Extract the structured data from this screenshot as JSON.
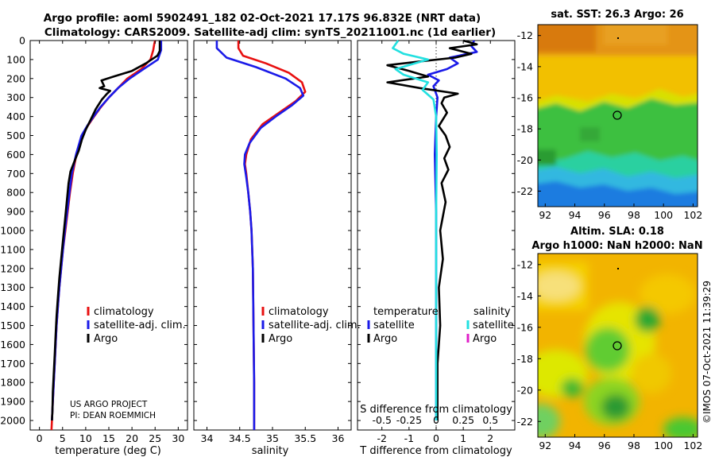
{
  "header": {
    "title_line1": "Argo profile: aoml 5902491_182 02-Oct-2021 17.17S 96.832E (NRT data)",
    "title_line2": "Climatology: CARS2009. Satellite-adj clim: synTS_20211001.nc (1d earlier)"
  },
  "credit": {
    "line1": "US ARGO PROJECT",
    "line2": "PI: DEAN ROEMMICH"
  },
  "timestamp": "©IMOS 07-Oct-2021 11:39:29",
  "colors": {
    "climatology": "#e81010",
    "satellite": "#1a1ae8",
    "argo": "#000000",
    "sat_salinity": "#22e0e0",
    "argo_salinity": "#e020c8"
  },
  "depth_axis": {
    "min": 0,
    "max": 2050,
    "ticks": [
      0,
      100,
      200,
      300,
      400,
      500,
      600,
      700,
      800,
      900,
      1000,
      1100,
      1200,
      1300,
      1400,
      1500,
      1600,
      1700,
      1800,
      1900,
      2000
    ]
  },
  "chart_data": [
    {
      "type": "line",
      "panel": "temperature",
      "xlabel": "temperature (deg C)",
      "xlim": [
        -2,
        32
      ],
      "xticks": [
        0,
        5,
        10,
        15,
        20,
        25,
        30
      ],
      "legend": [
        "climatology",
        "satellite-adj. clim.",
        "Argo"
      ],
      "series": [
        {
          "name": "climatology",
          "color": "#e81010",
          "points": [
            [
              25,
              0
            ],
            [
              24.8,
              20
            ],
            [
              24.6,
              50
            ],
            [
              24,
              100
            ],
            [
              22,
              150
            ],
            [
              19,
              200
            ],
            [
              17,
              250
            ],
            [
              15,
              300
            ],
            [
              13.3,
              350
            ],
            [
              11.8,
              400
            ],
            [
              10.4,
              450
            ],
            [
              9.2,
              500
            ],
            [
              8,
              600
            ],
            [
              7.2,
              700
            ],
            [
              6.6,
              800
            ],
            [
              6.1,
              900
            ],
            [
              5.6,
              1000
            ],
            [
              5.1,
              1100
            ],
            [
              4.7,
              1200
            ],
            [
              4.3,
              1300
            ],
            [
              4,
              1400
            ],
            [
              3.7,
              1500
            ],
            [
              3.5,
              1600
            ],
            [
              3.3,
              1700
            ],
            [
              3.1,
              1800
            ],
            [
              2.9,
              1900
            ],
            [
              2.7,
              2000
            ],
            [
              2.6,
              2050
            ]
          ]
        },
        {
          "name": "satellite-adj. clim.",
          "color": "#1a1ae8",
          "points": [
            [
              26.3,
              0
            ],
            [
              26.3,
              50
            ],
            [
              25.6,
              100
            ],
            [
              22.5,
              150
            ],
            [
              19.5,
              200
            ],
            [
              17,
              250
            ],
            [
              15,
              300
            ],
            [
              13.2,
              350
            ],
            [
              11.7,
              400
            ],
            [
              10.3,
              450
            ],
            [
              9.1,
              500
            ],
            [
              7.9,
              600
            ],
            [
              7,
              700
            ],
            [
              6.5,
              800
            ],
            [
              6,
              900
            ],
            [
              5.5,
              1000
            ],
            [
              5.1,
              1100
            ],
            [
              4.7,
              1200
            ],
            [
              4.3,
              1300
            ],
            [
              4,
              1400
            ],
            [
              3.7,
              1500
            ],
            [
              3.5,
              1600
            ],
            [
              3.3,
              1700
            ],
            [
              3.1,
              1800
            ],
            [
              2.9,
              1900
            ],
            [
              2.7,
              2000
            ]
          ]
        },
        {
          "name": "Argo",
          "color": "#000000",
          "points": [
            [
              26,
              0
            ],
            [
              26,
              55
            ],
            [
              25.5,
              80
            ],
            [
              23,
              120
            ],
            [
              20,
              160
            ],
            [
              16,
              190
            ],
            [
              13.4,
              210
            ],
            [
              14,
              240
            ],
            [
              13,
              250
            ],
            [
              15.3,
              265
            ],
            [
              14.6,
              280
            ],
            [
              13.5,
              310
            ],
            [
              12.2,
              360
            ],
            [
              11,
              420
            ],
            [
              10,
              470
            ],
            [
              9.2,
              520
            ],
            [
              8.5,
              580
            ],
            [
              7.5,
              640
            ],
            [
              6.7,
              690
            ],
            [
              6.3,
              750
            ],
            [
              5.9,
              850
            ],
            [
              5.5,
              950
            ],
            [
              5.1,
              1050
            ],
            [
              4.7,
              1150
            ],
            [
              4.3,
              1250
            ],
            [
              4,
              1350
            ],
            [
              3.7,
              1450
            ],
            [
              3.5,
              1550
            ],
            [
              3.3,
              1650
            ],
            [
              3.1,
              1750
            ],
            [
              2.9,
              1850
            ],
            [
              2.8,
              1950
            ],
            [
              2.7,
              2000
            ]
          ]
        }
      ]
    },
    {
      "type": "line",
      "panel": "salinity",
      "xlabel": "salinity",
      "xlim": [
        33.8,
        36.2
      ],
      "xticks": [
        34,
        34.5,
        35,
        35.5,
        36
      ],
      "legend": [
        "climatology",
        "satellite-adj. clim.",
        "Argo"
      ],
      "series": [
        {
          "name": "climatology",
          "color": "#e81010",
          "points": [
            [
              34.48,
              0
            ],
            [
              34.48,
              40
            ],
            [
              34.55,
              80
            ],
            [
              34.9,
              120
            ],
            [
              35.25,
              170
            ],
            [
              35.45,
              220
            ],
            [
              35.5,
              270
            ],
            [
              35.35,
              320
            ],
            [
              35.1,
              380
            ],
            [
              34.85,
              440
            ],
            [
              34.67,
              520
            ],
            [
              34.6,
              600
            ],
            [
              34.58,
              650
            ],
            [
              34.6,
              700
            ],
            [
              34.63,
              800
            ],
            [
              34.66,
              900
            ],
            [
              34.68,
              1000
            ],
            [
              34.7,
              1200
            ],
            [
              34.71,
              1500
            ],
            [
              34.72,
              1800
            ],
            [
              34.72,
              2050
            ]
          ]
        },
        {
          "name": "satellite-adj. clim.",
          "color": "#1a1ae8",
          "points": [
            [
              34.15,
              0
            ],
            [
              34.15,
              40
            ],
            [
              34.3,
              90
            ],
            [
              34.75,
              140
            ],
            [
              35.2,
              200
            ],
            [
              35.42,
              250
            ],
            [
              35.47,
              290
            ],
            [
              35.3,
              340
            ],
            [
              35.05,
              400
            ],
            [
              34.82,
              460
            ],
            [
              34.65,
              540
            ],
            [
              34.58,
              600
            ],
            [
              34.57,
              650
            ],
            [
              34.6,
              720
            ],
            [
              34.63,
              800
            ],
            [
              34.66,
              900
            ],
            [
              34.68,
              1000
            ],
            [
              34.7,
              1200
            ],
            [
              34.71,
              1500
            ],
            [
              34.72,
              1800
            ],
            [
              34.72,
              2050
            ]
          ]
        }
      ]
    },
    {
      "type": "line",
      "panel": "difference",
      "xlabel": "T difference from climatology",
      "xlabel_top": "S difference from climatology",
      "xlim": [
        -2.9,
        2.9
      ],
      "xticks": [
        -2,
        -1,
        0,
        1,
        2
      ],
      "s_ticks": [
        "-0.5",
        "-0.25",
        "0",
        "0.25",
        "0.5"
      ],
      "legend_temperature_title": "temperature",
      "legend_salinity_title": "salinity",
      "legend": {
        "temperature": [
          "satellite",
          "Argo"
        ],
        "salinity": [
          "satellite",
          "Argo"
        ]
      },
      "series": [
        {
          "name": "T satellite",
          "color": "#1a1ae8",
          "points": [
            [
              1.4,
              0
            ],
            [
              1.3,
              30
            ],
            [
              1.5,
              60
            ],
            [
              0.5,
              90
            ],
            [
              0.8,
              120
            ],
            [
              0.4,
              150
            ],
            [
              -0.3,
              180
            ],
            [
              0.1,
              210
            ],
            [
              -0.1,
              240
            ],
            [
              0.05,
              300
            ],
            [
              0,
              400
            ],
            [
              -0.05,
              600
            ],
            [
              0,
              900
            ],
            [
              0,
              1300
            ],
            [
              0,
              1700
            ],
            [
              0,
              2000
            ]
          ]
        },
        {
          "name": "T Argo",
          "color": "#000000",
          "points": [
            [
              1,
              0
            ],
            [
              1.5,
              20
            ],
            [
              0.5,
              40
            ],
            [
              1.3,
              70
            ],
            [
              0.7,
              90
            ],
            [
              -0.6,
              110
            ],
            [
              -1.8,
              130
            ],
            [
              -1,
              160
            ],
            [
              -0.3,
              190
            ],
            [
              -1.8,
              220
            ],
            [
              -0.6,
              250
            ],
            [
              0.8,
              280
            ],
            [
              0.3,
              300
            ],
            [
              0.2,
              330
            ],
            [
              0.4,
              380
            ],
            [
              0.1,
              450
            ],
            [
              0.35,
              500
            ],
            [
              0.5,
              560
            ],
            [
              0.3,
              620
            ],
            [
              0.45,
              680
            ],
            [
              0.2,
              750
            ],
            [
              0.35,
              850
            ],
            [
              0.15,
              1000
            ],
            [
              0.25,
              1150
            ],
            [
              0.1,
              1300
            ],
            [
              0.15,
              1500
            ],
            [
              0.05,
              1700
            ],
            [
              0.05,
              2000
            ]
          ]
        },
        {
          "name": "S satellite",
          "color": "#22e0e0",
          "points": [
            [
              -1.4,
              0
            ],
            [
              -1.6,
              40
            ],
            [
              -1.2,
              70
            ],
            [
              -0.3,
              100
            ],
            [
              -1.5,
              150
            ],
            [
              -1.2,
              180
            ],
            [
              -0.3,
              220
            ],
            [
              -0.5,
              260
            ],
            [
              -0.1,
              310
            ],
            [
              0,
              400
            ],
            [
              0.02,
              600
            ],
            [
              0,
              900
            ],
            [
              0,
              1300
            ],
            [
              0,
              1700
            ],
            [
              0,
              2000
            ]
          ]
        }
      ]
    },
    {
      "type": "heatmap",
      "panel": "sst-map",
      "title": "sat. SST: 26.3 Argo: 26",
      "xticks": [
        "92",
        "94",
        "96",
        "98",
        "100",
        "102"
      ],
      "yticks": [
        "-12",
        "-14",
        "-16",
        "-18",
        "-20",
        "-22"
      ],
      "xlim": [
        91.5,
        102.3
      ],
      "ylim": [
        -23,
        -11.3
      ],
      "float_position": {
        "lon": 96.832,
        "lat": -17.17
      }
    },
    {
      "type": "heatmap",
      "panel": "sla-map",
      "title": "Altim. SLA: 0.18",
      "subtitle": "Argo h1000: NaN h2000: NaN",
      "xticks": [
        "92",
        "94",
        "96",
        "98",
        "100",
        "102"
      ],
      "yticks": [
        "-12",
        "-14",
        "-16",
        "-18",
        "-20",
        "-22"
      ],
      "xlim": [
        91.5,
        102.3
      ],
      "ylim": [
        -23,
        -11.3
      ],
      "float_position": {
        "lon": 96.832,
        "lat": -17.17
      }
    }
  ]
}
